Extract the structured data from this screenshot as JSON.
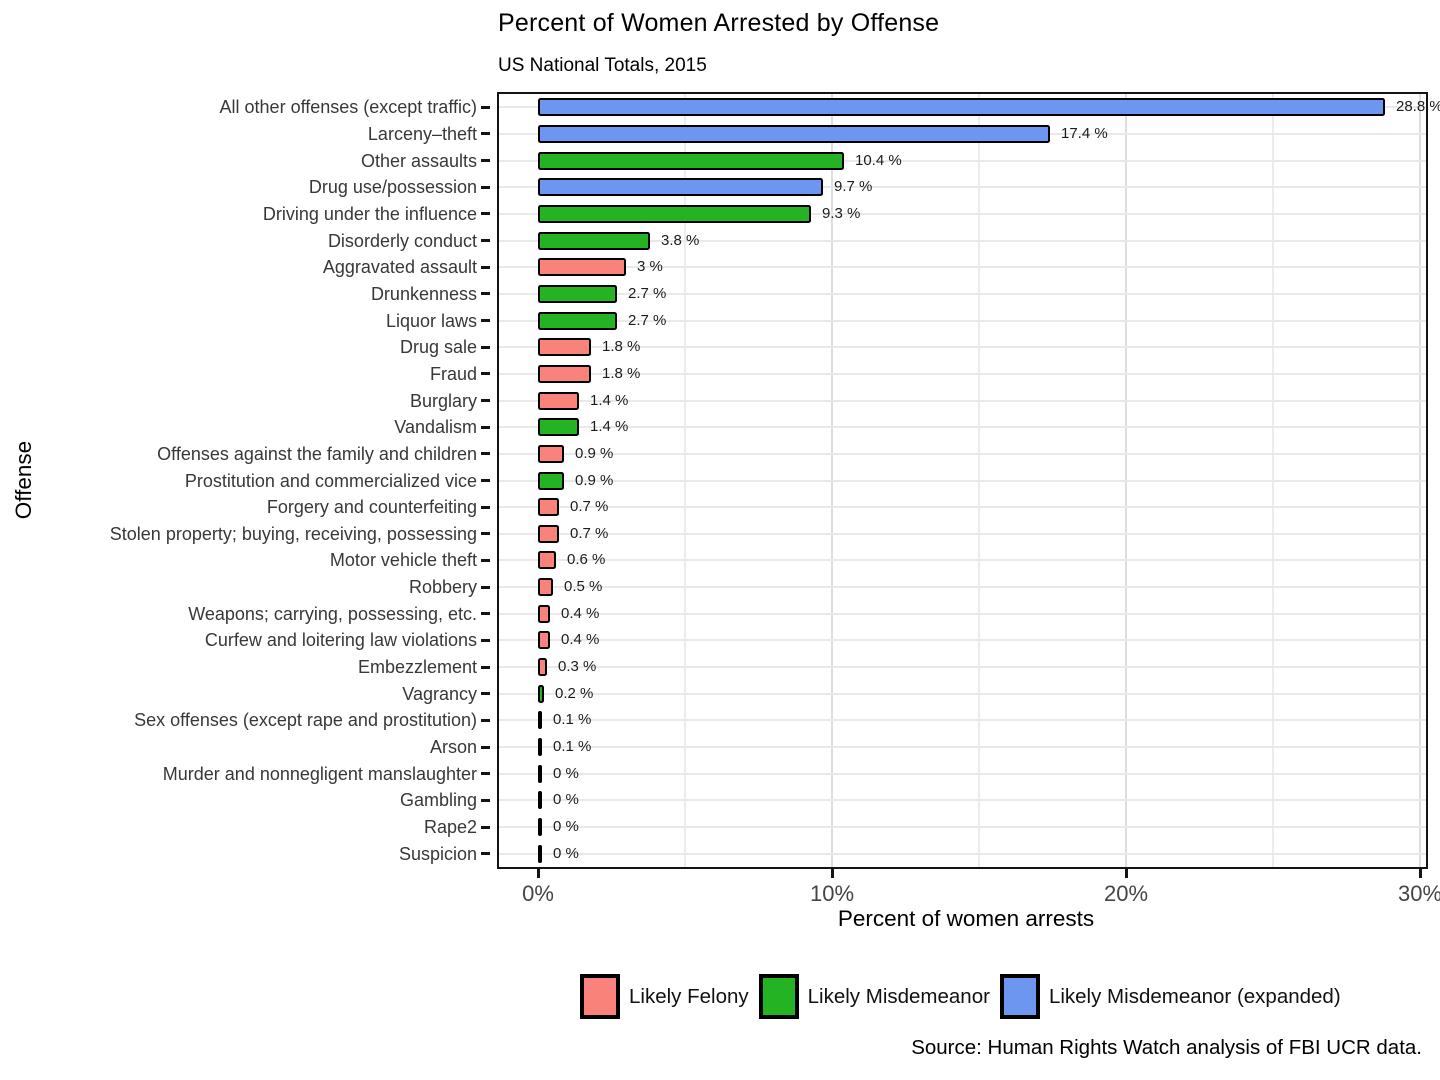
{
  "title": "Percent of Women Arrested by Offense",
  "subtitle": "US National Totals, 2015",
  "source": "Source: Human Rights Watch analysis of FBI UCR data.",
  "colors": {
    "felony": "#f9827b",
    "misdemeanor": "#23b323",
    "expanded": "#6d96f1",
    "bar_border": "#000000",
    "grid_major": "#dedede",
    "grid_minor": "#ececec",
    "panel_border": "#141414"
  },
  "x_axis": {
    "label": "Percent of women arrests",
    "tick_values": [
      0,
      10,
      20,
      30
    ],
    "tick_labels": [
      "0%",
      "10%",
      "20%",
      "30%"
    ],
    "max": 30,
    "gridline_values": [
      5,
      10,
      15,
      20,
      25,
      30
    ]
  },
  "y_axis": {
    "label": "Offense"
  },
  "legend": [
    {
      "label": "Likely Felony",
      "class": "felony"
    },
    {
      "label": "Likely Misdemeanor",
      "class": "misdemeanor"
    },
    {
      "label": "Likely Misdemeanor (expanded)",
      "class": "expanded"
    }
  ],
  "chart_data": {
    "type": "bar",
    "orientation": "horizontal",
    "title": "Percent of Women Arrested by Offense",
    "subtitle": "US National Totals, 2015",
    "xlabel": "Percent of women arrests",
    "ylabel": "Offense",
    "xlim": [
      0,
      30
    ],
    "grid": true,
    "legend_position": "bottom",
    "categories": [
      "All other offenses (except traffic)",
      "Larceny–theft",
      "Other assaults",
      "Drug use/possession",
      "Driving under the influence",
      "Disorderly conduct",
      "Aggravated assault",
      "Drunkenness",
      "Liquor laws",
      "Drug sale",
      "Fraud",
      "Burglary",
      "Vandalism",
      "Offenses against the family and children",
      "Prostitution and commercialized vice",
      "Forgery and counterfeiting",
      "Stolen property; buying, receiving, possessing",
      "Motor vehicle theft",
      "Robbery",
      "Weapons; carrying, possessing, etc.",
      "Curfew and loitering law violations",
      "Embezzlement",
      "Vagrancy",
      "Sex offenses (except rape and prostitution)",
      "Arson",
      "Murder and nonnegligent manslaughter",
      "Gambling",
      "Rape2",
      "Suspicion"
    ],
    "values": [
      28.8,
      17.4,
      10.4,
      9.7,
      9.3,
      3.8,
      3,
      2.7,
      2.7,
      1.8,
      1.8,
      1.4,
      1.4,
      0.9,
      0.9,
      0.7,
      0.7,
      0.6,
      0.5,
      0.4,
      0.4,
      0.3,
      0.2,
      0.1,
      0.1,
      0,
      0,
      0,
      0
    ],
    "value_labels": [
      "28.8 %",
      "17.4 %",
      "10.4 %",
      "9.7 %",
      "9.3 %",
      "3.8 %",
      "3 %",
      "2.7 %",
      "2.7 %",
      "1.8 %",
      "1.8 %",
      "1.4 %",
      "1.4 %",
      "0.9 %",
      "0.9 %",
      "0.7 %",
      "0.7 %",
      "0.6 %",
      "0.5 %",
      "0.4 %",
      "0.4 %",
      "0.3 %",
      "0.2 %",
      "0.1 %",
      "0.1 %",
      "0 %",
      "0 %",
      "0 %",
      "0 %"
    ],
    "classes": [
      "expanded",
      "expanded",
      "misdemeanor",
      "expanded",
      "misdemeanor",
      "misdemeanor",
      "felony",
      "misdemeanor",
      "misdemeanor",
      "felony",
      "felony",
      "felony",
      "misdemeanor",
      "felony",
      "misdemeanor",
      "felony",
      "felony",
      "felony",
      "felony",
      "felony",
      "felony",
      "felony",
      "misdemeanor",
      "felony",
      "felony",
      "felony",
      "misdemeanor",
      "felony",
      "misdemeanor"
    ]
  }
}
